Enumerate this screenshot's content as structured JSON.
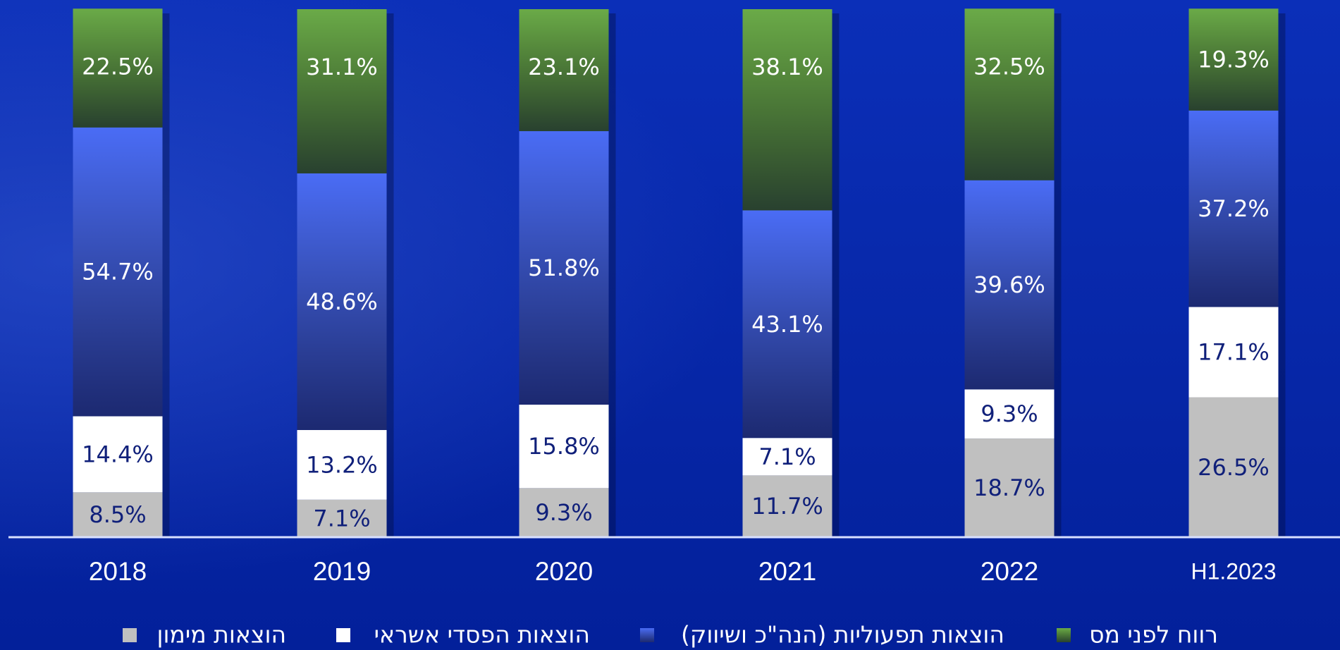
{
  "chart_data": {
    "type": "stacked_bar",
    "categories": [
      "2018",
      "2019",
      "2020",
      "2021",
      "2022",
      "H1.2023"
    ],
    "ylim": [
      0,
      100
    ],
    "series": [
      {
        "name": "הוצאות מימון",
        "color": "#c0c0c0",
        "values": [
          8.5,
          7.1,
          9.3,
          11.7,
          18.7,
          26.5
        ],
        "value_labels": [
          "8.5%",
          "7.1%",
          "9.3%",
          "11.7%",
          "18.7%",
          "26.5%"
        ]
      },
      {
        "name": "הוצאות הפסדי אשראי",
        "color": "#ffffff",
        "values": [
          14.4,
          13.2,
          15.8,
          7.1,
          9.3,
          17.1
        ],
        "value_labels": [
          "14.4%",
          "13.2%",
          "15.8%",
          "7.1%",
          "9.3%",
          "17.1%"
        ]
      },
      {
        "name": "הוצאות תפעוליות (הנה\"כ ושיווק)",
        "color": "#4a6cf5",
        "values": [
          54.7,
          48.6,
          51.8,
          43.1,
          39.6,
          37.2
        ],
        "value_labels": [
          "54.7%",
          "48.6%",
          "51.8%",
          "43.1%",
          "39.6%",
          "37.2%"
        ]
      },
      {
        "name": "רווח לפני מס",
        "color": "#6aaa48",
        "values": [
          22.5,
          31.1,
          23.1,
          38.1,
          32.5,
          19.3
        ],
        "value_labels": [
          "22.5%",
          "31.1%",
          "23.1%",
          "38.1%",
          "32.5%",
          "19.3%"
        ]
      }
    ]
  }
}
